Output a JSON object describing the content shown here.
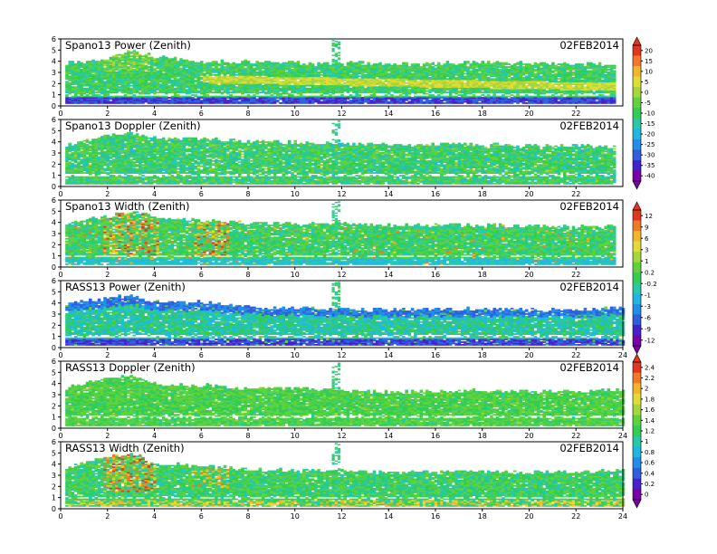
{
  "chart_data": [
    {
      "type": "heatmap",
      "title": "Spano13 Power (Zenith)",
      "date": "02FEB2014",
      "xlim": [
        0,
        24
      ],
      "ylim": [
        0,
        6
      ],
      "xticks": [
        0,
        2,
        4,
        6,
        8,
        10,
        12,
        14,
        16,
        18,
        20,
        22
      ],
      "yticks": [
        0,
        1,
        2,
        3,
        4,
        5,
        6
      ],
      "grid": false,
      "colorbar_ticks": [
        "20",
        "15",
        "10",
        "5",
        "0",
        "-5",
        "-10",
        "-15",
        "-20",
        "-25",
        "-30",
        "-35",
        "-40"
      ],
      "colorbar_range": [
        -40,
        20
      ],
      "pattern": "power",
      "upper_extent_by_hour": [
        [
          0,
          3.7
        ],
        [
          2,
          4.2
        ],
        [
          3,
          4.9
        ],
        [
          4,
          4.4
        ],
        [
          6,
          3.9
        ],
        [
          8,
          3.9
        ],
        [
          10,
          3.8
        ],
        [
          12,
          3.8
        ],
        [
          14,
          3.7
        ],
        [
          16,
          3.8
        ],
        [
          18,
          3.8
        ],
        [
          20,
          3.8
        ],
        [
          22,
          3.7
        ],
        [
          23.6,
          3.7
        ]
      ],
      "low_band_height": 0.9
    },
    {
      "type": "heatmap",
      "title": "Spano13 Doppler (Zenith)",
      "date": "02FEB2014",
      "xlim": [
        0,
        24
      ],
      "ylim": [
        0,
        6
      ],
      "xticks": [
        0,
        2,
        4,
        6,
        8,
        10,
        12,
        14,
        16,
        18,
        20,
        22
      ],
      "yticks": [
        0,
        1,
        2,
        3,
        4,
        5,
        6
      ],
      "grid": false,
      "pattern": "doppler",
      "upper_extent_by_hour": [
        [
          0,
          3.6
        ],
        [
          2,
          4.5
        ],
        [
          3,
          4.7
        ],
        [
          4,
          4.3
        ],
        [
          6,
          4.2
        ],
        [
          8,
          4.0
        ],
        [
          10,
          3.9
        ],
        [
          12,
          3.8
        ],
        [
          14,
          3.7
        ],
        [
          16,
          3.7
        ],
        [
          18,
          3.7
        ],
        [
          20,
          3.6
        ],
        [
          22,
          3.6
        ],
        [
          23.6,
          3.5
        ]
      ],
      "low_band_height": 0.9
    },
    {
      "type": "heatmap",
      "title": "Spano13 Width (Zenith)",
      "date": "02FEB2014",
      "xlim": [
        0,
        24
      ],
      "ylim": [
        0,
        6
      ],
      "xticks": [
        0,
        2,
        4,
        6,
        8,
        10,
        12,
        14,
        16,
        18,
        20,
        22
      ],
      "yticks": [
        0,
        1,
        2,
        3,
        4,
        5,
        6
      ],
      "grid": false,
      "colorbar_ticks": [
        "12",
        "9",
        "6",
        "3",
        "1",
        "0.2",
        "-0.2",
        "-1",
        "-3",
        "-6",
        "-9",
        "-12"
      ],
      "colorbar_range": [
        -12,
        12
      ],
      "pattern": "width",
      "upper_extent_by_hour": [
        [
          0,
          3.8
        ],
        [
          2,
          4.5
        ],
        [
          3,
          5.0
        ],
        [
          4,
          4.4
        ],
        [
          6,
          4.1
        ],
        [
          8,
          3.9
        ],
        [
          10,
          3.8
        ],
        [
          12,
          3.8
        ],
        [
          14,
          3.7
        ],
        [
          16,
          3.7
        ],
        [
          18,
          3.7
        ],
        [
          20,
          3.6
        ],
        [
          22,
          3.6
        ],
        [
          23.6,
          3.6
        ]
      ],
      "low_band_height": 0.8
    },
    {
      "type": "heatmap",
      "title": "RASS13 Power (Zenith)",
      "date": "02FEB2014",
      "xlim": [
        0,
        24
      ],
      "ylim": [
        0,
        6
      ],
      "xticks": [
        0,
        2,
        4,
        6,
        8,
        10,
        12,
        14,
        16,
        18,
        20,
        22,
        24
      ],
      "yticks": [
        0,
        1,
        2,
        3,
        4,
        5,
        6
      ],
      "grid": false,
      "pattern": "rass_power",
      "upper_extent_by_hour": [
        [
          0,
          3.9
        ],
        [
          2,
          4.4
        ],
        [
          3,
          4.6
        ],
        [
          4,
          4.0
        ],
        [
          6,
          4.0
        ],
        [
          8,
          3.6
        ],
        [
          10,
          3.5
        ],
        [
          12,
          3.4
        ],
        [
          14,
          3.3
        ],
        [
          16,
          3.4
        ],
        [
          18,
          3.4
        ],
        [
          20,
          3.3
        ],
        [
          22,
          3.4
        ],
        [
          24,
          3.5
        ]
      ],
      "low_band_height": 0.9
    },
    {
      "type": "heatmap",
      "title": "RASS13 Doppler (Zenith)",
      "date": "02FEB2014",
      "xlim": [
        0,
        24
      ],
      "ylim": [
        0,
        6
      ],
      "xticks": [
        0,
        2,
        4,
        6,
        8,
        10,
        12,
        14,
        16,
        18,
        20,
        22,
        24
      ],
      "yticks": [
        0,
        1,
        2,
        3,
        4,
        5,
        6
      ],
      "grid": false,
      "colorbar_ticks": [
        "2.4",
        "2.2",
        "2",
        "1.8",
        "1.6",
        "1.4",
        "1.2",
        "1",
        "0.8",
        "0.6",
        "0.4",
        "0.2",
        "0"
      ],
      "colorbar_range": [
        0,
        2.4
      ],
      "pattern": "rass_doppler",
      "upper_extent_by_hour": [
        [
          0,
          3.5
        ],
        [
          2,
          4.5
        ],
        [
          3,
          4.7
        ],
        [
          4,
          3.9
        ],
        [
          6,
          3.8
        ],
        [
          8,
          3.5
        ],
        [
          10,
          3.5
        ],
        [
          12,
          3.3
        ],
        [
          14,
          3.2
        ],
        [
          16,
          3.3
        ],
        [
          18,
          3.3
        ],
        [
          20,
          3.2
        ],
        [
          22,
          3.3
        ],
        [
          24,
          3.4
        ]
      ],
      "low_band_height": 0.9
    },
    {
      "type": "heatmap",
      "title": "RASS13 Width (Zenith)",
      "date": "02FEB2014",
      "xlim": [
        0,
        24
      ],
      "ylim": [
        0,
        6
      ],
      "xticks": [
        0,
        2,
        4,
        6,
        8,
        10,
        12,
        14,
        16,
        18,
        20,
        22,
        24
      ],
      "yticks": [
        0,
        1,
        2,
        3,
        4,
        5,
        6
      ],
      "grid": false,
      "pattern": "rass_width",
      "upper_extent_by_hour": [
        [
          0,
          3.6
        ],
        [
          2,
          4.6
        ],
        [
          3,
          4.9
        ],
        [
          4,
          4.0
        ],
        [
          6,
          3.8
        ],
        [
          8,
          3.5
        ],
        [
          10,
          3.4
        ],
        [
          12,
          3.3
        ],
        [
          14,
          3.2
        ],
        [
          16,
          3.3
        ],
        [
          18,
          3.3
        ],
        [
          20,
          3.2
        ],
        [
          22,
          3.3
        ],
        [
          24,
          3.4
        ]
      ],
      "low_band_height": 0.8
    }
  ],
  "colormap": [
    "#7a00a8",
    "#4422cc",
    "#2f5fe0",
    "#1f8fe8",
    "#20b8e0",
    "#27c9a8",
    "#33cc55",
    "#5fd23c",
    "#a5d63a",
    "#e0dc36",
    "#f2b52c",
    "#f07a26",
    "#e23620"
  ]
}
